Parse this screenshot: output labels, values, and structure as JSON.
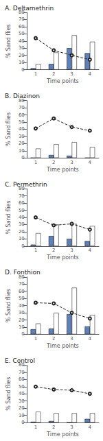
{
  "chart_data": [
    {
      "type": "bar",
      "title": "A. Deltamethrin",
      "xlabel": "Time points",
      "ylabel": "% Sand flies",
      "categories": [
        "1",
        "2",
        "3",
        "4"
      ],
      "series": [
        {
          "type": "bar",
          "color": "#6080b8",
          "values": [
            2,
            8,
            30,
            23
          ]
        },
        {
          "type": "bar",
          "color": "#ffffff",
          "values": [
            8,
            24,
            48,
            39
          ]
        },
        {
          "type": "line",
          "color": "#222222",
          "line_style": "dashed",
          "marker": "circle",
          "values": [
            44,
            27,
            20,
            14
          ]
        }
      ],
      "ylim": [
        0,
        80
      ],
      "yticks": [
        0,
        10,
        20,
        30,
        40,
        50,
        60,
        70,
        80
      ],
      "grid": false
    },
    {
      "type": "bar",
      "title": "B. Diazinon",
      "xlabel": "Time points",
      "ylabel": "% Sand flies",
      "categories": [
        "1",
        "2",
        "3",
        "4"
      ],
      "series": [
        {
          "type": "bar",
          "color": "#6080b8",
          "values": [
            0,
            4,
            3,
            0
          ]
        },
        {
          "type": "bar",
          "color": "#ffffff",
          "values": [
            13,
            19,
            22,
            15
          ]
        },
        {
          "type": "line",
          "color": "#222222",
          "line_style": "dashed",
          "marker": "circle",
          "values": [
            41,
            55,
            43,
            38
          ]
        }
      ],
      "ylim": [
        0,
        80
      ],
      "yticks": [
        0,
        10,
        20,
        30,
        40,
        50,
        60,
        70,
        80
      ],
      "grid": false
    },
    {
      "type": "bar",
      "title": "C. Permethrin",
      "xlabel": "Time points",
      "ylabel": "% Sand flies",
      "categories": [
        "1",
        "2",
        "3",
        "4"
      ],
      "series": [
        {
          "type": "bar",
          "color": "#6080b8",
          "values": [
            2,
            14,
            10,
            7
          ]
        },
        {
          "type": "bar",
          "color": "#ffffff",
          "values": [
            18,
            30,
            31,
            28
          ]
        },
        {
          "type": "line",
          "color": "#222222",
          "line_style": "dashed",
          "marker": "circle",
          "values": [
            40,
            29,
            31,
            23
          ]
        }
      ],
      "ylim": [
        0,
        80
      ],
      "yticks": [
        0,
        10,
        20,
        30,
        40,
        50,
        60,
        70,
        80
      ],
      "grid": false
    },
    {
      "type": "bar",
      "title": "D. Fonthion",
      "xlabel": "Time points",
      "ylabel": "% Sand flies",
      "categories": [
        "1",
        "2",
        "3",
        "4"
      ],
      "series": [
        {
          "type": "bar",
          "color": "#6080b8",
          "values": [
            7,
            8,
            28,
            11
          ]
        },
        {
          "type": "bar",
          "color": "#ffffff",
          "values": [
            15,
            30,
            65,
            27
          ]
        },
        {
          "type": "line",
          "color": "#222222",
          "line_style": "dashed",
          "marker": "circle",
          "values": [
            44,
            43,
            30,
            22
          ]
        }
      ],
      "ylim": [
        0,
        80
      ],
      "yticks": [
        0,
        10,
        20,
        30,
        40,
        50,
        60,
        70,
        80
      ],
      "grid": false
    },
    {
      "type": "bar",
      "title": "E. Control",
      "xlabel": "Time points",
      "ylabel": "% Sand flies",
      "categories": [
        "1",
        "2",
        "3",
        "4"
      ],
      "series": [
        {
          "type": "bar",
          "color": "#6080b8",
          "values": [
            1,
            2,
            0,
            5
          ]
        },
        {
          "type": "bar",
          "color": "#ffffff",
          "values": [
            15,
            13,
            13,
            13
          ]
        },
        {
          "type": "line",
          "color": "#222222",
          "line_style": "dashed",
          "marker": "circle",
          "values": [
            50,
            46,
            45,
            40
          ]
        }
      ],
      "ylim": [
        0,
        80
      ],
      "yticks": [
        0,
        10,
        20,
        30,
        40,
        50,
        60,
        70,
        80
      ],
      "grid": false
    }
  ]
}
